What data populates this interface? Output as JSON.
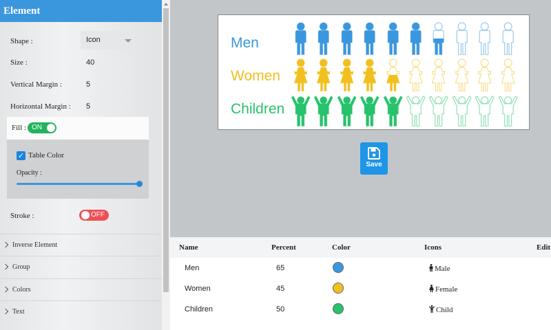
{
  "sidebar": {
    "title": "Element",
    "shape_label": "Shape :",
    "shape_value": "Icon",
    "size_label": "Size :",
    "size_value": "40",
    "vmargin_label": "Vertical Margin :",
    "vmargin_value": "5",
    "hmargin_label": "Horizontal Margin :",
    "hmargin_value": "5",
    "fill_label": "Fill :",
    "fill_toggle": "ON",
    "table_color_label": "Table Color",
    "opacity_label": "Opacity :",
    "opacity_value": 1.0,
    "stroke_label": "Stroke :",
    "stroke_toggle": "OFF",
    "sections": [
      "Inverse Element",
      "Group",
      "Colors",
      "Text"
    ]
  },
  "chart": {
    "total_icons": 10,
    "rows": [
      {
        "label": "Men",
        "color": "#3b97dd",
        "icon": "male-icon",
        "percent": 65
      },
      {
        "label": "Women",
        "color": "#f2c01e",
        "icon": "female-icon",
        "percent": 45
      },
      {
        "label": "Children",
        "color": "#27c26b",
        "icon": "child-icon",
        "percent": 50
      }
    ]
  },
  "save_label": "Save",
  "table": {
    "headers": {
      "name": "Name",
      "percent": "Percent",
      "color": "Color",
      "icons": "Icons",
      "edit": "Edit"
    },
    "rows": [
      {
        "name": "Men",
        "percent": "65",
        "color": "#3b97dd",
        "icon": "Male"
      },
      {
        "name": "Women",
        "percent": "45",
        "color": "#f2c01e",
        "icon": "Female"
      },
      {
        "name": "Children",
        "percent": "50",
        "color": "#27c26b",
        "icon": "Child"
      }
    ]
  }
}
